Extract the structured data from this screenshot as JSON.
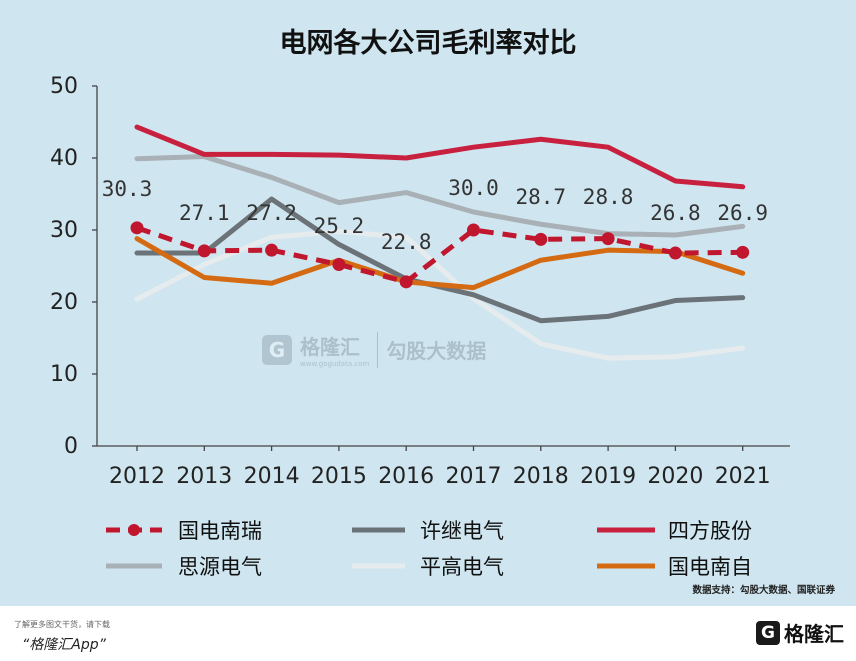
{
  "chart_data": {
    "type": "line",
    "title": "电网各大公司毛利率对比",
    "categories": [
      "2012",
      "2013",
      "2014",
      "2015",
      "2016",
      "2017",
      "2018",
      "2019",
      "2020",
      "2021"
    ],
    "ylim": [
      0,
      50
    ],
    "yticks": [
      "0",
      "10",
      "20",
      "30",
      "40",
      "50"
    ],
    "grid": false,
    "legend_position": "bottom",
    "series": [
      {
        "name": "国电南瑞",
        "color": "#c0172f",
        "style": "dashed-markers",
        "values": [
          30.3,
          27.1,
          27.2,
          25.2,
          22.8,
          30.0,
          28.7,
          28.8,
          26.8,
          26.9
        ],
        "labels": [
          "30.3",
          "27.1",
          "27.2",
          "25.2",
          "22.8",
          "30.0",
          "28.7",
          "28.8",
          "26.8",
          "26.9"
        ]
      },
      {
        "name": "许继电气",
        "color": "#6b7278",
        "style": "solid",
        "values": [
          26.8,
          26.8,
          34.3,
          28.0,
          23.2,
          21.0,
          17.4,
          18.0,
          20.2,
          20.6
        ]
      },
      {
        "name": "四方股份",
        "color": "#c8203f",
        "style": "solid",
        "values": [
          44.3,
          40.5,
          40.5,
          40.4,
          40.0,
          41.5,
          42.6,
          41.5,
          36.8,
          36.0
        ]
      },
      {
        "name": "思源电气",
        "color": "#a9b0b6",
        "style": "solid",
        "values": [
          39.9,
          40.2,
          37.3,
          33.8,
          35.2,
          32.5,
          30.8,
          29.5,
          29.3,
          30.5
        ]
      },
      {
        "name": "平高电气",
        "color": "#e6ebee",
        "style": "solid",
        "values": [
          20.4,
          25.2,
          29.0,
          29.8,
          29.0,
          20.5,
          14.2,
          12.2,
          12.4,
          13.6
        ]
      },
      {
        "name": "国电南自",
        "color": "#d46a12",
        "style": "solid",
        "values": [
          28.8,
          23.4,
          22.6,
          25.8,
          22.8,
          22.0,
          25.8,
          27.2,
          27.0,
          24.0
        ]
      }
    ],
    "source": "数据支持：勾股大数据、国联证券"
  },
  "watermark": {
    "brand": "格隆汇",
    "sub": "勾股大数据",
    "url": "www.gogudata.com",
    "mark": "G"
  },
  "footer": {
    "note": "了解更多图文干货，请下载",
    "app": "“格隆汇App”",
    "logo_text": "格隆汇",
    "logo_mark": "G"
  }
}
